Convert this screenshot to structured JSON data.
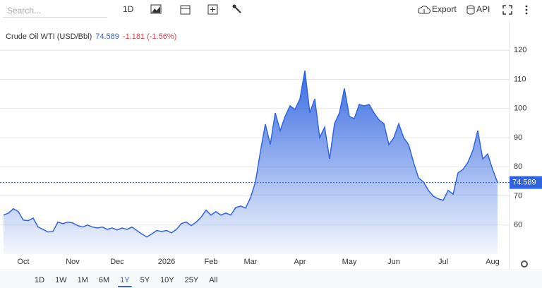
{
  "toolbar": {
    "search": "Search...",
    "interval": "1D",
    "export": "Export",
    "api": "API"
  },
  "ranges": [
    "1D",
    "1W",
    "1M",
    "6M",
    "1Y",
    "5Y",
    "10Y",
    "25Y",
    "All"
  ],
  "active_range": "1Y",
  "chart_data": {
    "type": "area",
    "title": "Crude Oil WTI (USD/Bbl)",
    "change": "-1.181 (-1.56%)",
    "color": "#2f64e0",
    "categories": [
      null,
      null,
      null,
      null,
      "Oct",
      null,
      null,
      null,
      null,
      null,
      null,
      null,
      null,
      null,
      "Nov",
      null,
      null,
      null,
      null,
      null,
      null,
      null,
      null,
      "Dec",
      null,
      null,
      null,
      null,
      null,
      null,
      null,
      null,
      null,
      "2026",
      null,
      null,
      null,
      null,
      null,
      null,
      null,
      null,
      "Feb",
      null,
      null,
      null,
      null,
      null,
      null,
      null,
      "Mar",
      null,
      null,
      null,
      null,
      null,
      null,
      null,
      null,
      null,
      "Apr",
      null,
      null,
      null,
      null,
      null,
      null,
      null,
      null,
      null,
      "May",
      null,
      null,
      null,
      null,
      null,
      null,
      null,
      null,
      "Jun",
      null,
      null,
      null,
      null,
      null,
      null,
      null,
      null,
      null,
      "Jul",
      null,
      null,
      null,
      null,
      null,
      null,
      null,
      null,
      null,
      "Aug",
      null
    ],
    "values": [
      63.4,
      64.1,
      65.6,
      64.6,
      61.7,
      61.5,
      62.4,
      59.3,
      58.5,
      57.6,
      57.8,
      61.0,
      60.5,
      61.0,
      60.7,
      59.8,
      59.3,
      60.0,
      59.3,
      59.0,
      59.3,
      58.5,
      59.0,
      58.3,
      59.0,
      58.5,
      59.3,
      58.1,
      56.9,
      55.9,
      56.9,
      58.1,
      57.8,
      58.1,
      57.3,
      58.5,
      60.5,
      61.0,
      59.8,
      61.0,
      62.7,
      65.1,
      63.4,
      64.6,
      63.4,
      64.1,
      63.4,
      66.0,
      66.5,
      65.8,
      69.4,
      74.8,
      85.2,
      94.6,
      87.6,
      98.5,
      92.4,
      97.3,
      100.9,
      99.7,
      103.3,
      113.0,
      98.5,
      103.3,
      90.0,
      93.6,
      82.7,
      94.8,
      98.5,
      106.9,
      97.3,
      96.5,
      101.4,
      100.9,
      101.4,
      98.5,
      96.1,
      94.8,
      87.6,
      90.0,
      94.8,
      90.0,
      87.6,
      81.5,
      76.2,
      74.8,
      71.9,
      69.9,
      69.0,
      68.5,
      71.9,
      70.6,
      77.9,
      79.1,
      81.5,
      85.6,
      92.4,
      82.7,
      84.4,
      79.1,
      74.589
    ],
    "ylim": [
      50,
      130
    ],
    "yticks": [
      60,
      70,
      80,
      90,
      100,
      110,
      120
    ],
    "grid": true
  }
}
